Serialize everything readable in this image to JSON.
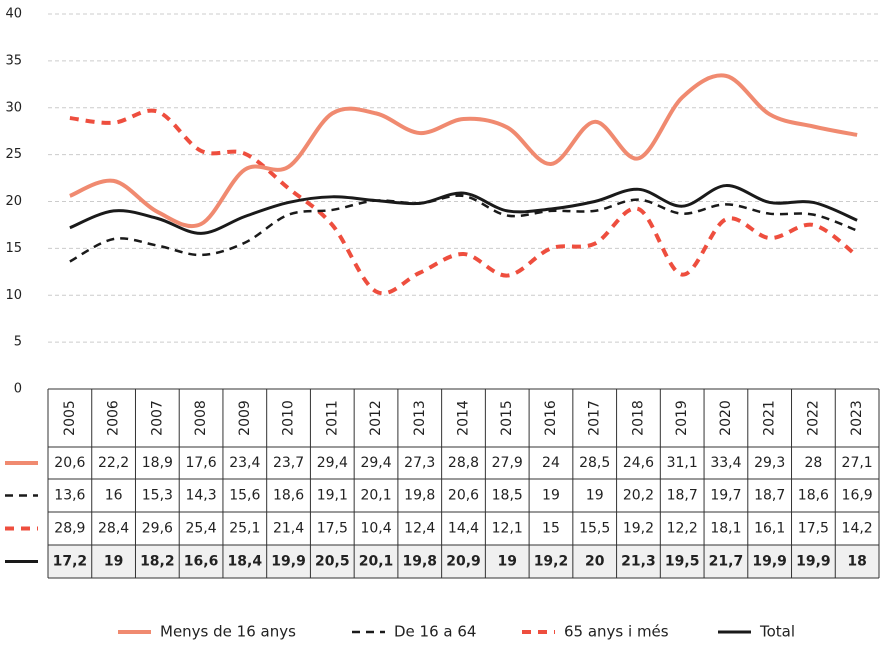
{
  "chart_data": {
    "type": "line",
    "categories": [
      "2005",
      "2006",
      "2007",
      "2008",
      "2009",
      "2010",
      "2011",
      "2012",
      "2013",
      "2014",
      "2015",
      "2016",
      "2017",
      "2018",
      "2019",
      "2020",
      "2021",
      "2022",
      "2023"
    ],
    "ylim": [
      0,
      40
    ],
    "yticks": [
      0,
      5,
      10,
      15,
      20,
      25,
      30,
      35,
      40
    ],
    "grid": true,
    "legend": "bottom",
    "series": [
      {
        "name": "Menys de 16 anys",
        "color": "#f08a70",
        "line_style": "solid",
        "values": [
          20.6,
          22.2,
          18.9,
          17.6,
          23.4,
          23.7,
          29.4,
          29.4,
          27.3,
          28.8,
          27.9,
          24,
          28.5,
          24.6,
          31.1,
          33.4,
          29.3,
          28,
          27.1
        ],
        "value_labels": [
          "20,6",
          "22,2",
          "18,9",
          "17,6",
          "23,4",
          "23,7",
          "29,4",
          "29,4",
          "27,3",
          "28,8",
          "27,9",
          "24",
          "28,5",
          "24,6",
          "31,1",
          "33,4",
          "29,3",
          "28",
          "27,1"
        ]
      },
      {
        "name": "De 16 a 64",
        "color": "#1a1a1a",
        "line_style": "dashed",
        "values": [
          13.6,
          16,
          15.3,
          14.3,
          15.6,
          18.6,
          19.1,
          20.1,
          19.8,
          20.6,
          18.5,
          19,
          19,
          20.2,
          18.7,
          19.7,
          18.7,
          18.6,
          16.9
        ],
        "value_labels": [
          "13,6",
          "16",
          "15,3",
          "14,3",
          "15,6",
          "18,6",
          "19,1",
          "20,1",
          "19,8",
          "20,6",
          "18,5",
          "19",
          "19",
          "20,2",
          "18,7",
          "19,7",
          "18,7",
          "18,6",
          "16,9"
        ]
      },
      {
        "name": "65 anys i més",
        "color": "#ee4e3e",
        "line_style": "dashed",
        "values": [
          28.9,
          28.4,
          29.6,
          25.4,
          25.1,
          21.4,
          17.5,
          10.4,
          12.4,
          14.4,
          12.1,
          15,
          15.5,
          19.2,
          12.2,
          18.1,
          16.1,
          17.5,
          14.2
        ],
        "value_labels": [
          "28,9",
          "28,4",
          "29,6",
          "25,4",
          "25,1",
          "21,4",
          "17,5",
          "10,4",
          "12,4",
          "14,4",
          "12,1",
          "15",
          "15,5",
          "19,2",
          "12,2",
          "18,1",
          "16,1",
          "17,5",
          "14,2"
        ]
      },
      {
        "name": "Total",
        "color": "#1a1a1a",
        "line_style": "solid",
        "bold": true,
        "values": [
          17.2,
          19,
          18.2,
          16.6,
          18.4,
          19.9,
          20.5,
          20.1,
          19.8,
          20.9,
          19,
          19.2,
          20,
          21.3,
          19.5,
          21.7,
          19.9,
          19.9,
          18
        ],
        "value_labels": [
          "17,2",
          "19",
          "18,2",
          "16,6",
          "18,4",
          "19,9",
          "20,5",
          "20,1",
          "19,8",
          "20,9",
          "19",
          "19,2",
          "20",
          "21,3",
          "19,5",
          "21,7",
          "19,9",
          "19,9",
          "18"
        ]
      }
    ]
  }
}
